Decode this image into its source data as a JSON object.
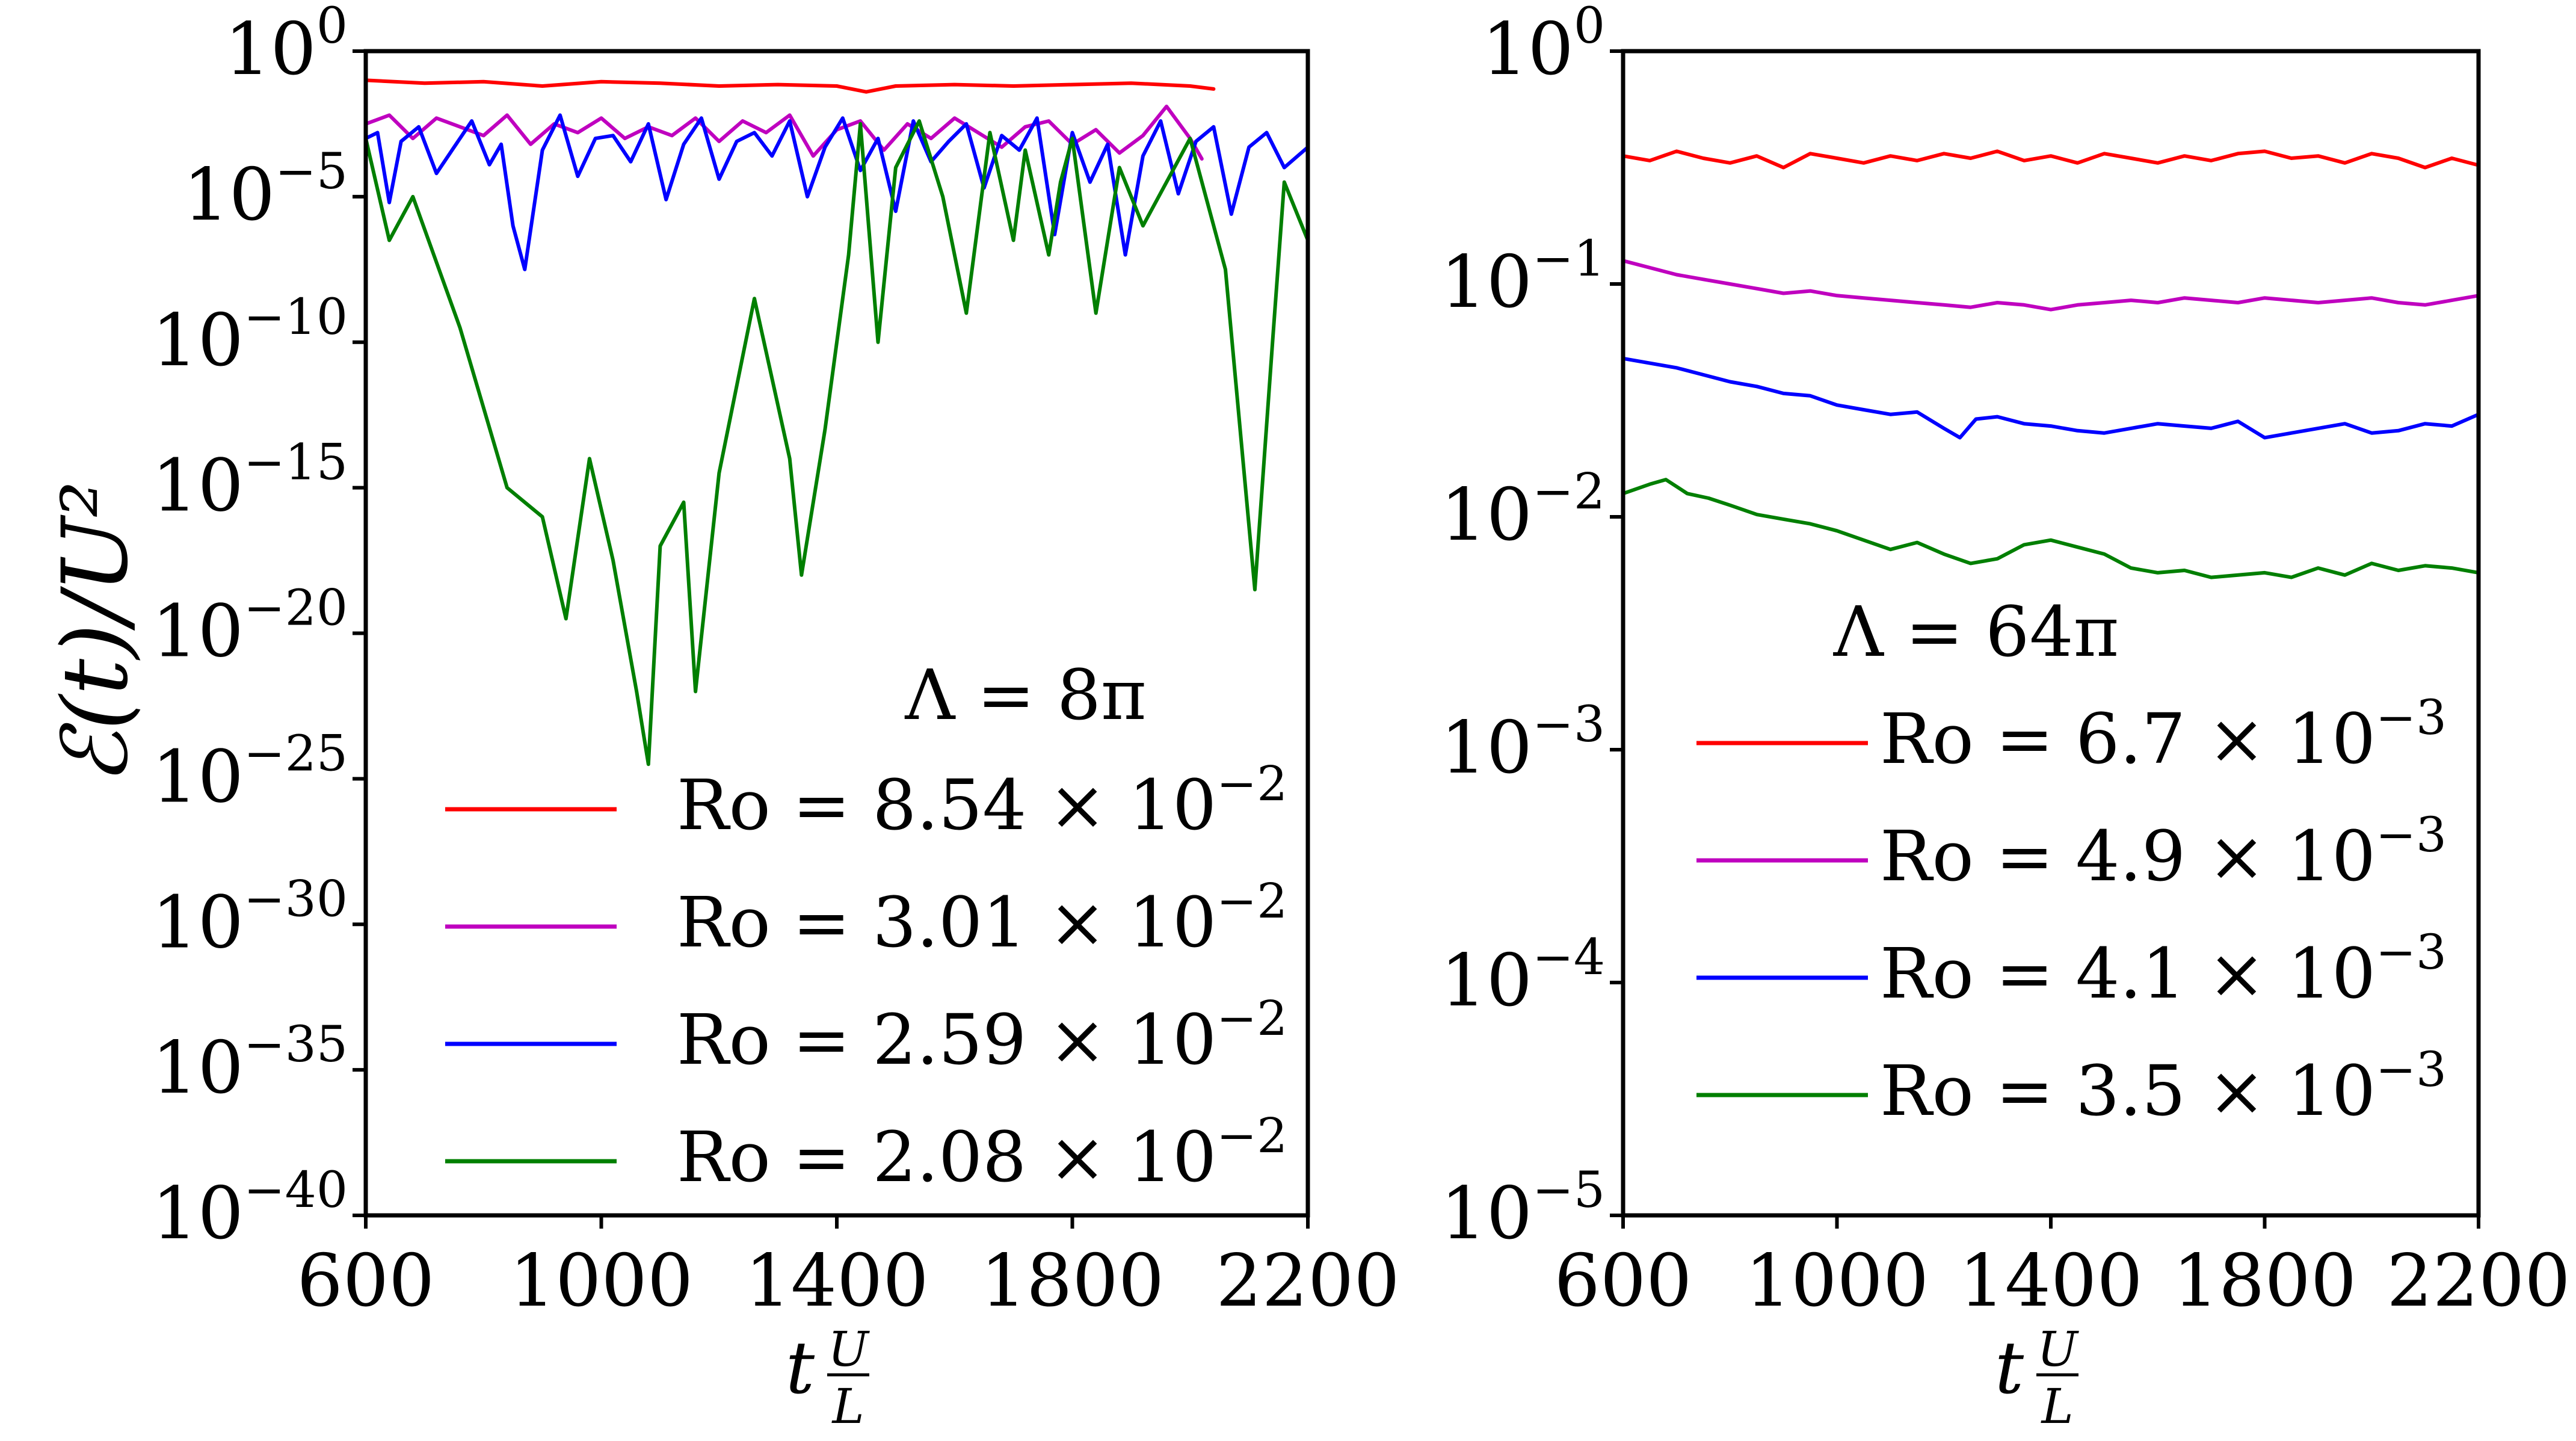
{
  "chart_data": [
    {
      "type": "line",
      "title": "",
      "ylabel": "ℰ(t)/U²",
      "xlabel_base": "t",
      "xlabel_frac_num": "U",
      "xlabel_frac_den": "L",
      "ylog_exp_range": [
        -40,
        0
      ],
      "xlim": [
        600,
        2200
      ],
      "x_ticks": [
        600,
        1000,
        1400,
        1800,
        2200
      ],
      "y_ticks": [
        {
          "exp": 0,
          "base": "10",
          "sup": "0"
        },
        {
          "exp": -5,
          "base": "10",
          "sup": "−5"
        },
        {
          "exp": -10,
          "base": "10",
          "sup": "−10"
        },
        {
          "exp": -15,
          "base": "10",
          "sup": "−15"
        },
        {
          "exp": -20,
          "base": "10",
          "sup": "−20"
        },
        {
          "exp": -25,
          "base": "10",
          "sup": "−25"
        },
        {
          "exp": -30,
          "base": "10",
          "sup": "−30"
        },
        {
          "exp": -35,
          "base": "10",
          "sup": "−35"
        },
        {
          "exp": -40,
          "base": "10",
          "sup": "−40"
        }
      ],
      "annotation": "Λ = 8π",
      "legend_location": "lower-right",
      "series": [
        {
          "name": "Ro = 8.54 × 10⁻²",
          "label_main": "Ro = 8.54 × 10",
          "label_sup": "−2",
          "color": "#ff0000",
          "x": [
            600,
            700,
            800,
            900,
            1000,
            1100,
            1200,
            1300,
            1400,
            1450,
            1500,
            1600,
            1700,
            1800,
            1900,
            2000,
            2040
          ],
          "log10_y": [
            -1.0,
            -1.1,
            -1.05,
            -1.2,
            -1.05,
            -1.1,
            -1.2,
            -1.15,
            -1.2,
            -1.4,
            -1.2,
            -1.15,
            -1.2,
            -1.15,
            -1.1,
            -1.2,
            -1.3
          ]
        },
        {
          "name": "Ro = 3.01 × 10⁻²",
          "label_main": "Ro = 3.01 × 10",
          "label_sup": "−2",
          "color": "#bf00bf",
          "x": [
            600,
            640,
            680,
            720,
            760,
            800,
            840,
            880,
            920,
            960,
            1000,
            1040,
            1080,
            1120,
            1160,
            1200,
            1240,
            1280,
            1320,
            1360,
            1400,
            1440,
            1480,
            1520,
            1560,
            1600,
            1640,
            1680,
            1720,
            1760,
            1800,
            1840,
            1880,
            1920,
            1960,
            2000,
            2020
          ],
          "log10_y": [
            -2.5,
            -2.2,
            -3.0,
            -2.3,
            -2.6,
            -2.9,
            -2.2,
            -3.2,
            -2.5,
            -2.8,
            -2.3,
            -3.0,
            -2.6,
            -2.9,
            -2.3,
            -3.1,
            -2.4,
            -2.8,
            -2.2,
            -3.6,
            -2.7,
            -2.4,
            -3.4,
            -2.5,
            -3.0,
            -2.3,
            -2.8,
            -3.3,
            -2.6,
            -2.4,
            -3.2,
            -2.7,
            -3.5,
            -2.9,
            -1.9,
            -3.0,
            -3.7
          ]
        },
        {
          "name": "Ro = 2.59 × 10⁻²",
          "label_main": "Ro = 2.59 × 10",
          "label_sup": "−2",
          "color": "#0000ff",
          "x": [
            600,
            620,
            640,
            660,
            690,
            720,
            750,
            780,
            810,
            830,
            850,
            870,
            900,
            930,
            960,
            990,
            1020,
            1050,
            1080,
            1110,
            1140,
            1170,
            1200,
            1230,
            1260,
            1290,
            1320,
            1350,
            1380,
            1410,
            1440,
            1470,
            1500,
            1530,
            1560,
            1590,
            1620,
            1650,
            1680,
            1710,
            1740,
            1770,
            1800,
            1830,
            1860,
            1890,
            1920,
            1950,
            1980,
            2010,
            2040,
            2070,
            2100,
            2130,
            2160,
            2200
          ],
          "log10_y": [
            -3.0,
            -2.8,
            -5.2,
            -3.1,
            -2.6,
            -4.2,
            -3.3,
            -2.4,
            -3.9,
            -3.2,
            -6.0,
            -7.5,
            -3.4,
            -2.2,
            -4.3,
            -3.0,
            -2.9,
            -3.8,
            -2.5,
            -5.1,
            -3.2,
            -2.3,
            -4.4,
            -3.1,
            -2.8,
            -3.6,
            -2.4,
            -5.0,
            -3.3,
            -2.3,
            -4.1,
            -3.0,
            -5.5,
            -2.4,
            -3.8,
            -3.1,
            -2.5,
            -4.7,
            -2.9,
            -3.4,
            -2.3,
            -6.3,
            -2.8,
            -4.5,
            -3.2,
            -7.0,
            -3.6,
            -2.4,
            -4.9,
            -3.1,
            -2.6,
            -5.6,
            -3.3,
            -2.8,
            -4.0,
            -3.3
          ]
        },
        {
          "name": "Ro = 2.08 × 10⁻²",
          "label_main": "Ro = 2.08 × 10",
          "label_sup": "−2",
          "color": "#007f00",
          "x": [
            600,
            640,
            680,
            760,
            840,
            900,
            940,
            980,
            1020,
            1060,
            1080,
            1100,
            1140,
            1160,
            1200,
            1260,
            1320,
            1340,
            1380,
            1420,
            1440,
            1470,
            1500,
            1540,
            1580,
            1620,
            1660,
            1700,
            1720,
            1760,
            1780,
            1800,
            1840,
            1880,
            1920,
            2000,
            2060,
            2110,
            2140,
            2160,
            2200
          ],
          "log10_y": [
            -3.0,
            -6.5,
            -5.0,
            -9.5,
            -15.0,
            -16.0,
            -19.5,
            -14.0,
            -17.5,
            -22.0,
            -24.5,
            -17.0,
            -15.5,
            -22.0,
            -14.5,
            -8.5,
            -14.0,
            -18.0,
            -13.0,
            -7.0,
            -2.5,
            -10.0,
            -4.0,
            -2.4,
            -5.0,
            -9.0,
            -2.8,
            -6.5,
            -3.4,
            -7.0,
            -4.5,
            -3.0,
            -9.0,
            -4.0,
            -6.0,
            -3.0,
            -7.5,
            -18.5,
            -10.0,
            -4.5,
            -6.5
          ]
        }
      ]
    },
    {
      "type": "line",
      "title": "",
      "xlabel_base": "t",
      "xlabel_frac_num": "U",
      "xlabel_frac_den": "L",
      "ylog_exp_range": [
        -5,
        0
      ],
      "xlim": [
        600,
        2200
      ],
      "x_ticks": [
        600,
        1000,
        1400,
        1800,
        2200
      ],
      "y_ticks": [
        {
          "exp": 0,
          "base": "10",
          "sup": "0"
        },
        {
          "exp": -1,
          "base": "10",
          "sup": "−1"
        },
        {
          "exp": -2,
          "base": "10",
          "sup": "−2"
        },
        {
          "exp": -3,
          "base": "10",
          "sup": "−3"
        },
        {
          "exp": -4,
          "base": "10",
          "sup": "−4"
        },
        {
          "exp": -5,
          "base": "10",
          "sup": "−5"
        }
      ],
      "annotation": "Λ = 64π",
      "legend_location": "lower-right",
      "series": [
        {
          "name": "Ro = 6.7 × 10⁻³",
          "label_main": "Ro = 6.7 × 10",
          "label_sup": "−3",
          "color": "#ff0000",
          "x": [
            600,
            650,
            700,
            750,
            800,
            850,
            900,
            950,
            1000,
            1050,
            1100,
            1150,
            1200,
            1250,
            1300,
            1350,
            1400,
            1450,
            1500,
            1550,
            1600,
            1650,
            1700,
            1750,
            1800,
            1850,
            1900,
            1950,
            2000,
            2050,
            2100,
            2150,
            2200
          ],
          "log10_y": [
            -0.45,
            -0.47,
            -0.43,
            -0.46,
            -0.48,
            -0.45,
            -0.5,
            -0.44,
            -0.46,
            -0.48,
            -0.45,
            -0.47,
            -0.44,
            -0.46,
            -0.43,
            -0.47,
            -0.45,
            -0.48,
            -0.44,
            -0.46,
            -0.48,
            -0.45,
            -0.47,
            -0.44,
            -0.43,
            -0.46,
            -0.45,
            -0.48,
            -0.44,
            -0.46,
            -0.5,
            -0.46,
            -0.49
          ]
        },
        {
          "name": "Ro = 4.9 × 10⁻³",
          "label_main": "Ro = 4.9 × 10",
          "label_sup": "−3",
          "color": "#bf00bf",
          "x": [
            600,
            650,
            700,
            750,
            800,
            850,
            900,
            950,
            1000,
            1050,
            1100,
            1150,
            1200,
            1250,
            1300,
            1350,
            1400,
            1450,
            1500,
            1550,
            1600,
            1650,
            1700,
            1750,
            1800,
            1850,
            1900,
            1950,
            2000,
            2050,
            2100,
            2150,
            2200
          ],
          "log10_y": [
            -0.9,
            -0.93,
            -0.96,
            -0.98,
            -1.0,
            -1.02,
            -1.04,
            -1.03,
            -1.05,
            -1.06,
            -1.07,
            -1.08,
            -1.09,
            -1.1,
            -1.08,
            -1.09,
            -1.11,
            -1.09,
            -1.08,
            -1.07,
            -1.08,
            -1.06,
            -1.07,
            -1.08,
            -1.06,
            -1.07,
            -1.08,
            -1.07,
            -1.06,
            -1.08,
            -1.09,
            -1.07,
            -1.05
          ]
        },
        {
          "name": "Ro = 4.1 × 10⁻³",
          "label_main": "Ro = 4.1 × 10",
          "label_sup": "−3",
          "color": "#0000ff",
          "x": [
            600,
            650,
            700,
            750,
            800,
            850,
            900,
            950,
            1000,
            1050,
            1100,
            1150,
            1200,
            1230,
            1260,
            1300,
            1350,
            1400,
            1450,
            1500,
            1550,
            1600,
            1650,
            1700,
            1750,
            1800,
            1850,
            1900,
            1950,
            2000,
            2050,
            2100,
            2150,
            2200
          ],
          "log10_y": [
            -1.32,
            -1.34,
            -1.36,
            -1.39,
            -1.42,
            -1.44,
            -1.47,
            -1.48,
            -1.52,
            -1.54,
            -1.56,
            -1.55,
            -1.62,
            -1.66,
            -1.58,
            -1.57,
            -1.6,
            -1.61,
            -1.63,
            -1.64,
            -1.62,
            -1.6,
            -1.61,
            -1.62,
            -1.59,
            -1.66,
            -1.64,
            -1.62,
            -1.6,
            -1.64,
            -1.63,
            -1.6,
            -1.61,
            -1.56
          ]
        },
        {
          "name": "Ro = 3.5 × 10⁻³",
          "label_main": "Ro = 3.5 × 10",
          "label_sup": "−3",
          "color": "#007f00",
          "x": [
            600,
            650,
            680,
            720,
            760,
            800,
            850,
            900,
            950,
            1000,
            1050,
            1100,
            1150,
            1200,
            1250,
            1300,
            1350,
            1400,
            1450,
            1500,
            1550,
            1600,
            1650,
            1700,
            1750,
            1800,
            1850,
            1900,
            1950,
            2000,
            2050,
            2100,
            2150,
            2200
          ],
          "log10_y": [
            -1.9,
            -1.86,
            -1.84,
            -1.9,
            -1.92,
            -1.95,
            -1.99,
            -2.01,
            -2.03,
            -2.06,
            -2.1,
            -2.14,
            -2.11,
            -2.16,
            -2.2,
            -2.18,
            -2.12,
            -2.1,
            -2.13,
            -2.16,
            -2.22,
            -2.24,
            -2.23,
            -2.26,
            -2.25,
            -2.24,
            -2.26,
            -2.22,
            -2.25,
            -2.2,
            -2.23,
            -2.21,
            -2.22,
            -2.24
          ]
        }
      ]
    }
  ]
}
